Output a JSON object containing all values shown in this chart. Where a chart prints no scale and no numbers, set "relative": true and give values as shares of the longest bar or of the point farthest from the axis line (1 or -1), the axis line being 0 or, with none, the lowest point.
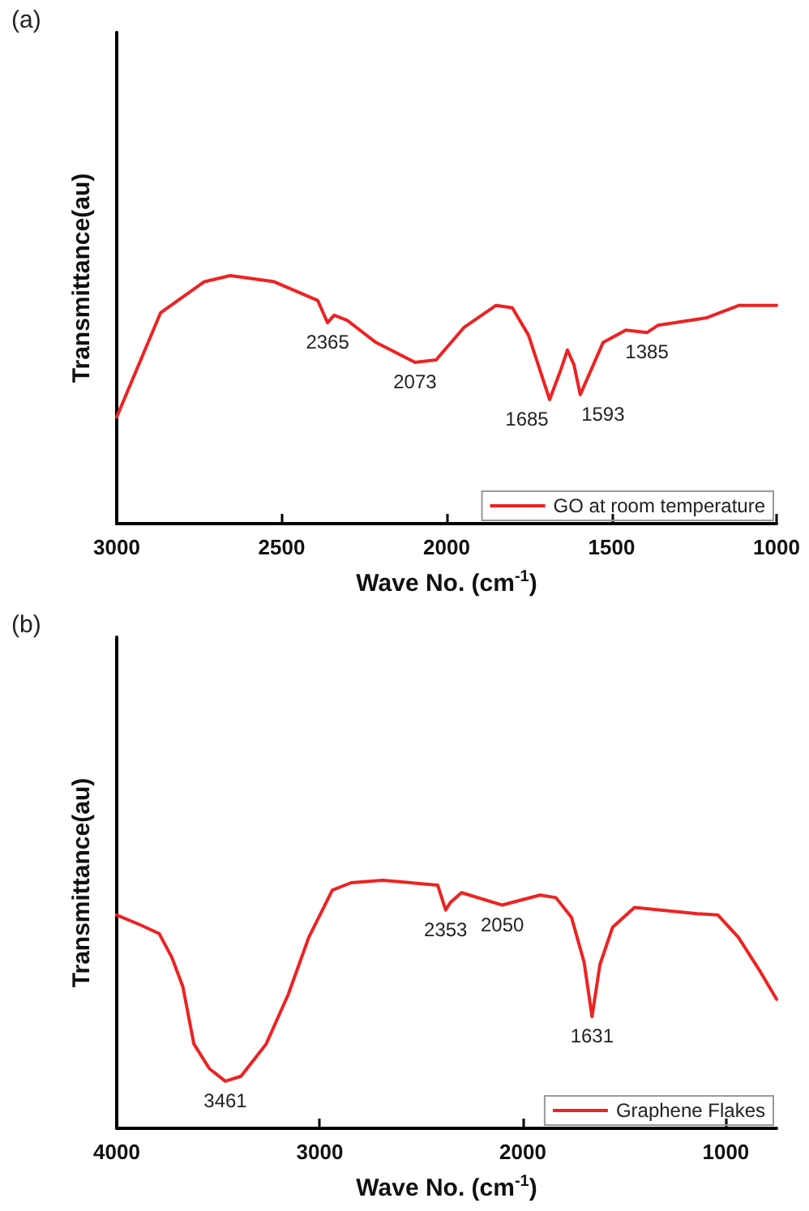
{
  "chart_data": [
    {
      "type": "line",
      "title": "(a)",
      "xlabel": "Wave No. (cm$^{-1}$)",
      "ylabel": "Transmittance(au)",
      "relative": true,
      "xlim": [
        3000,
        1000
      ],
      "xticks": [
        3000,
        2500,
        2000,
        1500,
        1000
      ],
      "tick_labels": "x",
      "legend": "bottom right",
      "grid": false,
      "marker": "none",
      "line_style": "solid",
      "series": [
        {
          "name": "GO at room temperature",
          "color": "#ee2222",
          "x": [
            3000,
            2867,
            2735,
            2656,
            2523,
            2391,
            2361,
            2341,
            2302,
            2214,
            2096,
            2032,
            1948,
            1850,
            1801,
            1752,
            1688,
            1654,
            1634,
            1614,
            1595,
            1526,
            1457,
            1393,
            1359,
            1211,
            1113,
            1015,
            1000
          ],
          "values": [
            0.43,
            0.85,
            0.975,
            1.0,
            0.975,
            0.9,
            0.81,
            0.84,
            0.82,
            0.73,
            0.65,
            0.66,
            0.79,
            0.88,
            0.87,
            0.76,
            0.5,
            0.62,
            0.7,
            0.64,
            0.52,
            0.73,
            0.78,
            0.77,
            0.8,
            0.83,
            0.88,
            0.88,
            0.88
          ]
        }
      ],
      "annotations": [
        {
          "text": "2365",
          "x": 2361,
          "y": 0.81
        },
        {
          "text": "2073",
          "x": 2096,
          "y": 0.65
        },
        {
          "text": "1685",
          "x": 1688,
          "y": 0.5
        },
        {
          "text": "1593",
          "x": 1595,
          "y": 0.52
        },
        {
          "text": "1385",
          "x": 1393,
          "y": 0.77
        }
      ]
    },
    {
      "type": "line",
      "title": "(b)",
      "xlabel": "Wave No. (cm$^{-1}$)",
      "ylabel": "Transmittance(au)",
      "relative": true,
      "xlim": [
        4000,
        750
      ],
      "xticks": [
        4000,
        3000,
        2000,
        1000
      ],
      "tick_labels": "x",
      "legend": "bottom right",
      "grid": false,
      "marker": "none",
      "line_style": "solid",
      "series": [
        {
          "name": "Graphene Flakes",
          "color": "#ee2222",
          "x": [
            4000,
            3884,
            3791,
            3729,
            3674,
            3620,
            3543,
            3465,
            3388,
            3264,
            3155,
            3054,
            2938,
            2845,
            2690,
            2419,
            2380,
            2357,
            2302,
            2101,
            1915,
            1837,
            1760,
            1698,
            1659,
            1620,
            1558,
            1450,
            1140,
            1039,
            938,
            829,
            750
          ],
          "values": [
            0.86,
            0.82,
            0.785,
            0.69,
            0.57,
            0.34,
            0.24,
            0.19,
            0.21,
            0.34,
            0.54,
            0.77,
            0.96,
            0.99,
            1.0,
            0.98,
            0.88,
            0.91,
            0.95,
            0.9,
            0.94,
            0.93,
            0.85,
            0.67,
            0.45,
            0.66,
            0.81,
            0.89,
            0.865,
            0.86,
            0.77,
            0.63,
            0.52
          ]
        }
      ],
      "annotations": [
        {
          "text": "3461",
          "x": 3465,
          "y": 0.19
        },
        {
          "text": "2353",
          "x": 2380,
          "y": 0.88
        },
        {
          "text": "2050",
          "x": 2101,
          "y": 0.9
        },
        {
          "text": "1631",
          "x": 1659,
          "y": 0.45
        }
      ]
    }
  ]
}
